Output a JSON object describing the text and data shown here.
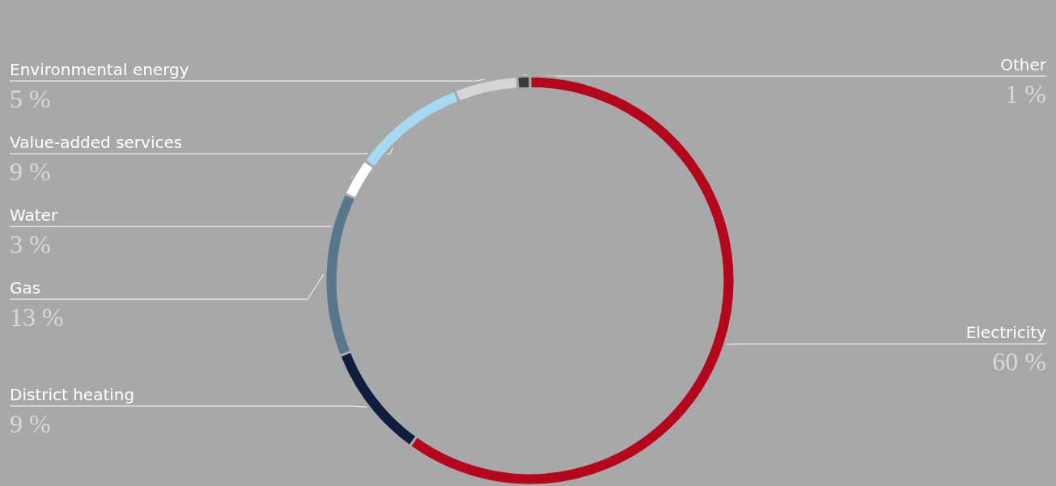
{
  "chart_data": {
    "type": "donut",
    "categories": [
      "Electricity",
      "District heating",
      "Gas",
      "Water",
      "Value-added services",
      "Environmental energy",
      "Other"
    ],
    "values": [
      60,
      9,
      13,
      3,
      9,
      5,
      1
    ],
    "value_labels": [
      "60 %",
      "9 %",
      "13 %",
      "3 %",
      "9 %",
      "5 %",
      "1 %"
    ],
    "colors": [
      "#b5061c",
      "#0e1e3c",
      "#56788a",
      "#ffffff",
      "#a6d9f2",
      "#d6d6d8",
      "#3c3c3e"
    ],
    "legend": false
  }
}
